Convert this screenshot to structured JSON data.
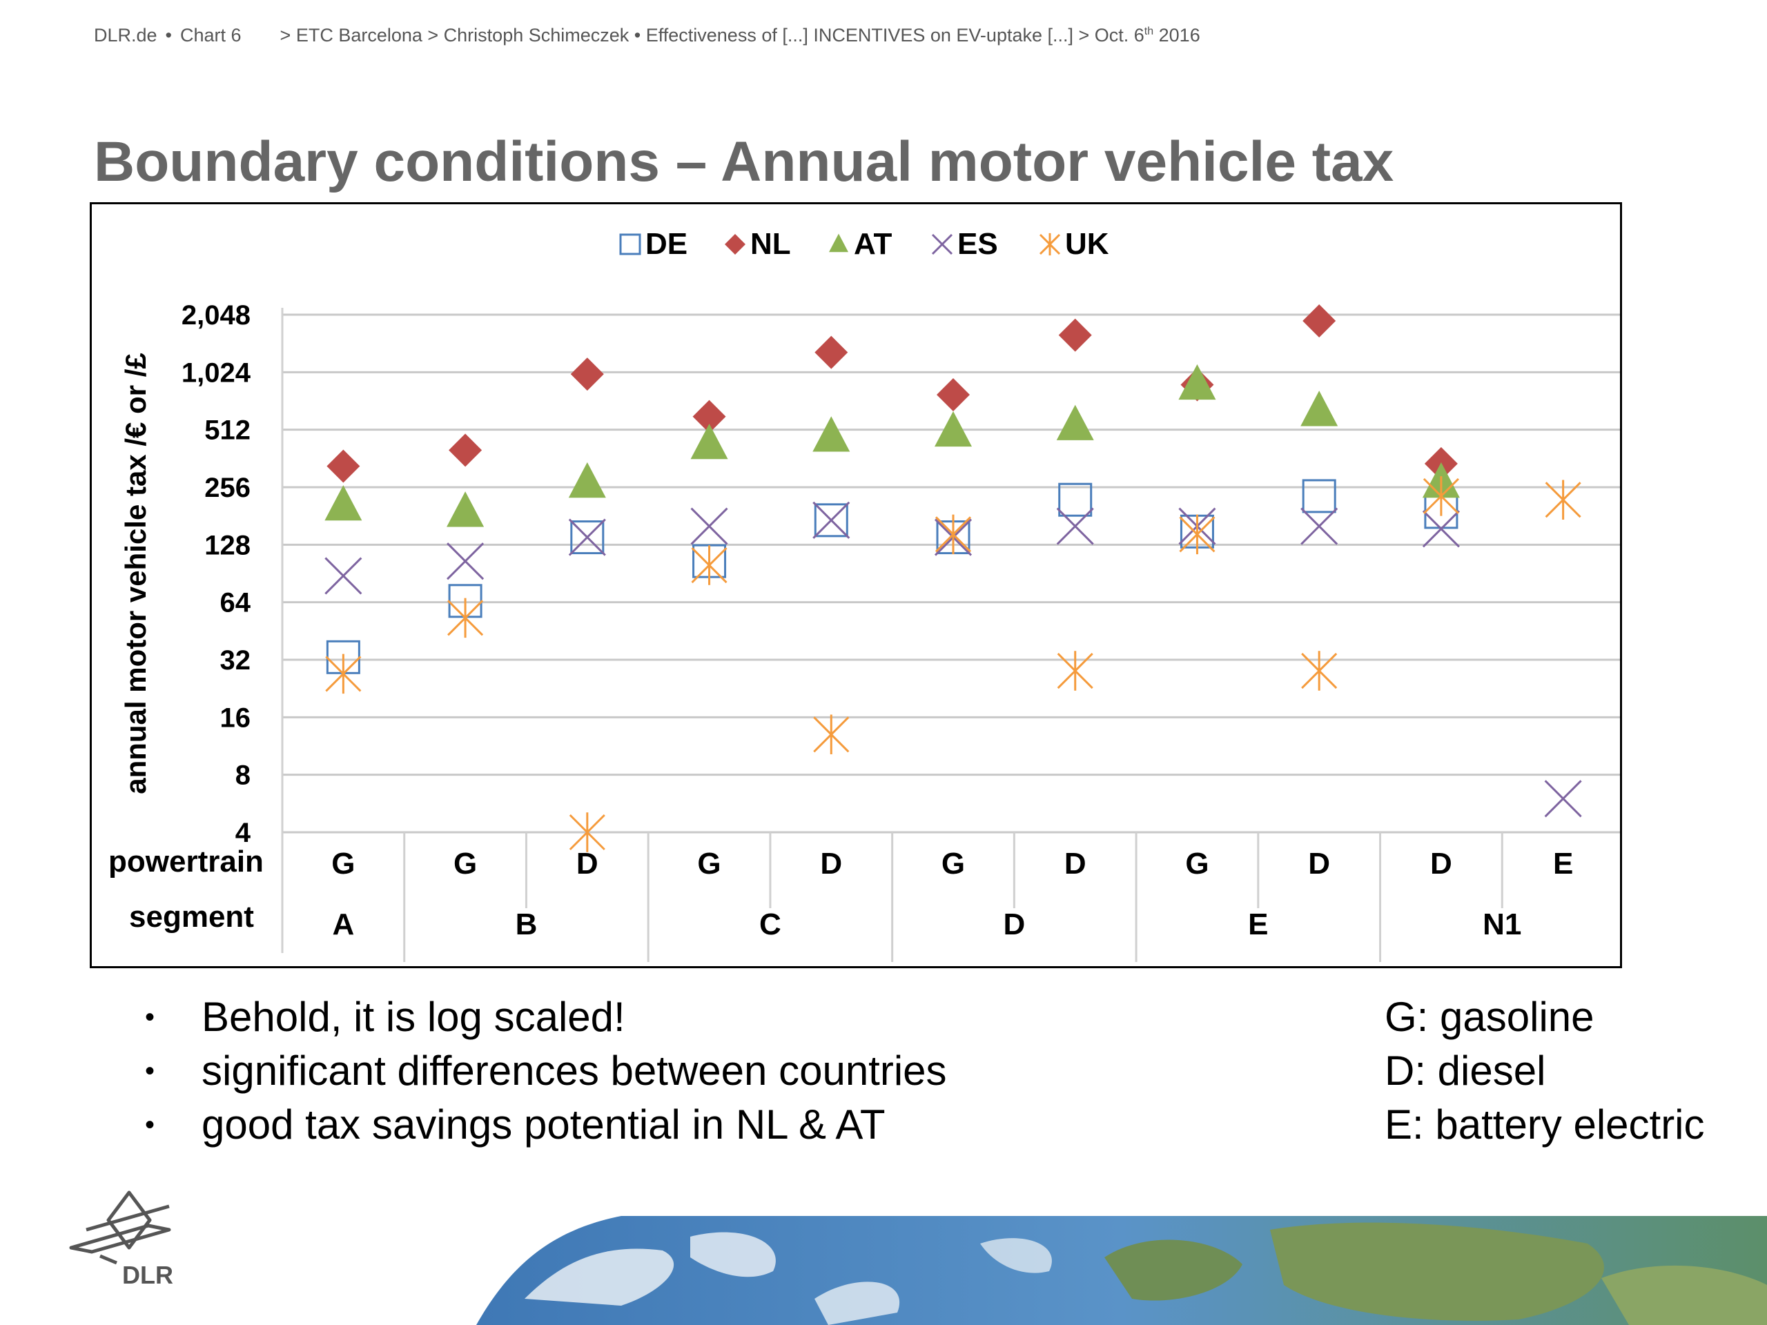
{
  "header": {
    "site": "DLR.de",
    "bullet": "•",
    "chart_no": "Chart 6",
    "path": "> ETC Barcelona > Christoph Schimeczek  • Effectiveness of [...] INCENTIVES on EV-uptake [...] > Oct. 6",
    "date_sup": "th",
    "year": " 2016"
  },
  "title": "Boundary conditions – Annual motor vehicle tax",
  "chart_data": {
    "type": "scatter",
    "y_scale": "log2",
    "ylabel": "annual motor vehicle tax /€ or /£",
    "yticks": [
      4,
      8,
      16,
      32,
      64,
      128,
      256,
      512,
      1024,
      2048
    ],
    "ytick_labels": [
      "4",
      "8",
      "16",
      "32",
      "64",
      "128",
      "256",
      "512",
      "1,024",
      "2,048"
    ],
    "ylim": [
      4,
      2048
    ],
    "grid": true,
    "legend_position": "top-center",
    "row_labels": {
      "powertrain": "powertrain",
      "segment": "segment"
    },
    "powertrain": [
      "G",
      "G",
      "D",
      "G",
      "D",
      "G",
      "D",
      "G",
      "D",
      "D",
      "E"
    ],
    "segments": [
      {
        "label": "A",
        "span": 1
      },
      {
        "label": "B",
        "span": 2
      },
      {
        "label": "C",
        "span": 2
      },
      {
        "label": "D",
        "span": 2
      },
      {
        "label": "E",
        "span": 2
      },
      {
        "label": "N1",
        "span": 2
      }
    ],
    "series": [
      {
        "name": "DE",
        "marker": "square-open",
        "color": "#4a7ebb",
        "values": [
          33,
          65,
          140,
          105,
          172,
          140,
          220,
          150,
          230,
          190,
          null
        ]
      },
      {
        "name": "NL",
        "marker": "diamond",
        "color": "#be4b48",
        "values": [
          330,
          400,
          1000,
          600,
          1300,
          780,
          1600,
          880,
          1900,
          340,
          null
        ]
      },
      {
        "name": "AT",
        "marker": "triangle",
        "color": "#8db352",
        "values": [
          205,
          190,
          270,
          430,
          470,
          500,
          540,
          880,
          640,
          270,
          null
        ]
      },
      {
        "name": "ES",
        "marker": "x",
        "color": "#7e64a0",
        "values": [
          88,
          105,
          140,
          160,
          172,
          140,
          160,
          160,
          160,
          155,
          6
        ]
      },
      {
        "name": "UK",
        "marker": "asterisk",
        "color": "#f59b3c",
        "values": [
          27,
          53,
          4,
          100,
          13,
          145,
          28,
          145,
          28,
          230,
          220
        ]
      }
    ]
  },
  "bullets": [
    "Behold, it is log scaled!",
    "significant differences between countries",
    "good tax savings potential in NL & AT"
  ],
  "bullet_char": "•",
  "glossary": [
    "G: gasoline",
    "D: diesel",
    "E: battery electric"
  ],
  "logo_text": "DLR"
}
